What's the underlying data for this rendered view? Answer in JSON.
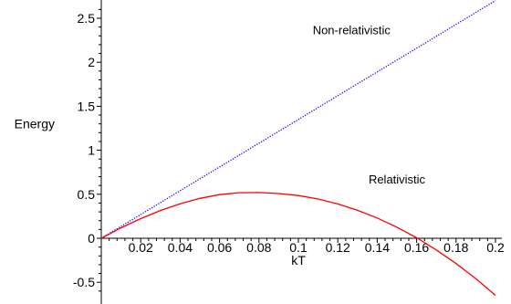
{
  "chart_data": {
    "type": "line",
    "title": "",
    "xlabel": "kT",
    "ylabel": "Energy",
    "xlim": [
      0,
      0.2
    ],
    "ylim": [
      -0.7,
      2.75
    ],
    "grid": false,
    "x_ticks": [
      "0.02",
      "0.04",
      "0.06",
      "0.08",
      "0.1",
      "0.12",
      "0.14",
      "0.16",
      "0.18",
      "0.2"
    ],
    "y_ticks": [
      "-0.5",
      "0",
      "0.5",
      "1",
      "1.5",
      "2",
      "2.5"
    ],
    "annotations": [
      {
        "text": "Non-relativistic",
        "x": 0.127,
        "y": 2.32
      },
      {
        "text": "Relativistic",
        "x": 0.15,
        "y": 0.62
      }
    ],
    "series": [
      {
        "name": "Non-relativistic",
        "color": "#0000ff",
        "style": "dotted",
        "x": [
          0,
          0.02,
          0.04,
          0.06,
          0.08,
          0.1,
          0.12,
          0.14,
          0.16,
          0.18,
          0.2
        ],
        "y": [
          0,
          0.27,
          0.54,
          0.81,
          1.08,
          1.35,
          1.62,
          1.89,
          2.16,
          2.43,
          2.7
        ]
      },
      {
        "name": "Relativistic",
        "color": "#ff0000",
        "style": "solid",
        "x": [
          0,
          0.01,
          0.02,
          0.03,
          0.04,
          0.05,
          0.06,
          0.07,
          0.08,
          0.09,
          0.1,
          0.11,
          0.12,
          0.13,
          0.14,
          0.15,
          0.16,
          0.17,
          0.18,
          0.19,
          0.2
        ],
        "y": [
          0,
          0.118,
          0.223,
          0.315,
          0.392,
          0.453,
          0.496,
          0.518,
          0.52,
          0.508,
          0.485,
          0.446,
          0.39,
          0.317,
          0.23,
          0.126,
          0.005,
          -0.133,
          -0.287,
          -0.458,
          -0.648
        ]
      }
    ]
  }
}
